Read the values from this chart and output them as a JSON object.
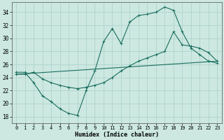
{
  "title": "",
  "xlabel": "Humidex (Indice chaleur)",
  "ylabel": "",
  "background_color": "#cce8e0",
  "grid_color": "#aacfc8",
  "line_color": "#1a6e60",
  "ylim": [
    17,
    35.5
  ],
  "xlim": [
    -0.5,
    23.5
  ],
  "yticks": [
    18,
    20,
    22,
    24,
    26,
    28,
    30,
    32,
    34
  ],
  "xticks": [
    0,
    1,
    2,
    3,
    4,
    5,
    6,
    7,
    8,
    9,
    10,
    11,
    12,
    13,
    14,
    15,
    16,
    17,
    18,
    19,
    20,
    21,
    22,
    23
  ],
  "series": [
    {
      "x": [
        0,
        1,
        2,
        3,
        4,
        5,
        6,
        7,
        8,
        9,
        10,
        11,
        12,
        13,
        14,
        15,
        16,
        17,
        18,
        19,
        20,
        21,
        22,
        23
      ],
      "y": [
        24.8,
        24.8,
        23.2,
        21.2,
        20.3,
        19.2,
        18.5,
        18.2,
        22.0,
        25.0,
        29.5,
        31.5,
        29.2,
        32.5,
        33.5,
        33.7,
        34.0,
        34.8,
        34.3,
        31.0,
        28.5,
        27.5,
        26.5,
        26.2
      ]
    },
    {
      "x": [
        0,
        23
      ],
      "y": [
        24.5,
        26.5
      ]
    },
    {
      "x": [
        0,
        1,
        2,
        3,
        4,
        5,
        6,
        7,
        8,
        9,
        10,
        11,
        12,
        13,
        14,
        15,
        16,
        17,
        18,
        19,
        20,
        21,
        22,
        23
      ],
      "y": [
        24.5,
        24.5,
        24.8,
        23.8,
        23.2,
        22.8,
        22.5,
        22.3,
        22.5,
        22.8,
        23.2,
        24.0,
        25.0,
        25.8,
        26.5,
        27.0,
        27.5,
        28.0,
        31.0,
        29.0,
        28.8,
        28.5,
        27.8,
        26.5
      ]
    }
  ]
}
